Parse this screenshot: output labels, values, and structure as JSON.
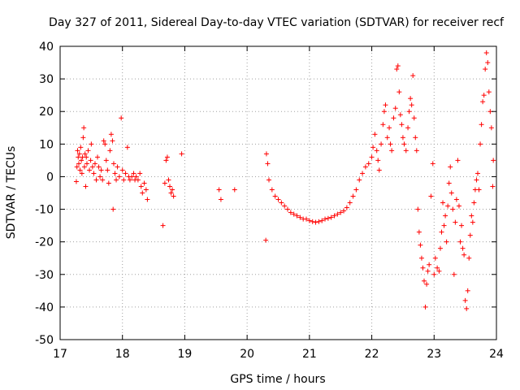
{
  "chart_data": {
    "type": "scatter",
    "title": "Day 327 of 2011, Sidereal Day-to-day VTEC variation (SDTVAR) for receiver recf",
    "xlabel": "GPS time / hours",
    "ylabel": "SDTVAR / TECUs",
    "xlim": [
      17,
      24
    ],
    "ylim": [
      -50,
      40
    ],
    "xticks": [
      17,
      18,
      19,
      20,
      21,
      22,
      23,
      24
    ],
    "yticks": [
      -50,
      -40,
      -30,
      -20,
      -10,
      0,
      10,
      20,
      30,
      40
    ],
    "grid": true,
    "marker": "plus",
    "color": "#ff0000",
    "series": [
      {
        "name": "SDTVAR",
        "points": [
          [
            17.26,
            -1.5
          ],
          [
            17.27,
            3
          ],
          [
            17.28,
            8
          ],
          [
            17.29,
            6
          ],
          [
            17.3,
            4
          ],
          [
            17.31,
            7
          ],
          [
            17.32,
            2
          ],
          [
            17.33,
            9
          ],
          [
            17.34,
            5
          ],
          [
            17.35,
            1
          ],
          [
            17.36,
            6
          ],
          [
            17.37,
            12
          ],
          [
            17.38,
            15
          ],
          [
            17.39,
            3
          ],
          [
            17.4,
            7
          ],
          [
            17.41,
            -3
          ],
          [
            17.42,
            6
          ],
          [
            17.43,
            4
          ],
          [
            17.45,
            8
          ],
          [
            17.47,
            2
          ],
          [
            17.49,
            5
          ],
          [
            17.5,
            10
          ],
          [
            17.52,
            3
          ],
          [
            17.54,
            1
          ],
          [
            17.56,
            4
          ],
          [
            17.58,
            -1
          ],
          [
            17.6,
            6
          ],
          [
            17.62,
            3
          ],
          [
            17.64,
            0
          ],
          [
            17.66,
            2
          ],
          [
            17.68,
            -1
          ],
          [
            17.7,
            11
          ],
          [
            17.72,
            10
          ],
          [
            17.74,
            5
          ],
          [
            17.76,
            2
          ],
          [
            17.78,
            -2
          ],
          [
            17.8,
            8
          ],
          [
            17.82,
            13
          ],
          [
            17.84,
            11
          ],
          [
            17.86,
            4
          ],
          [
            17.88,
            1
          ],
          [
            17.9,
            -1
          ],
          [
            17.92,
            3
          ],
          [
            17.95,
            0
          ],
          [
            17.98,
            18
          ],
          [
            18.0,
            2
          ],
          [
            18.02,
            -1
          ],
          [
            18.05,
            1
          ],
          [
            18.08,
            9
          ],
          [
            18.1,
            0
          ],
          [
            18.12,
            -1
          ],
          [
            18.15,
            0
          ],
          [
            18.18,
            1
          ],
          [
            18.2,
            -1
          ],
          [
            18.22,
            0
          ],
          [
            18.25,
            -1
          ],
          [
            18.28,
            1
          ],
          [
            18.3,
            -3
          ],
          [
            18.32,
            -5
          ],
          [
            18.35,
            -2
          ],
          [
            18.38,
            -4
          ],
          [
            18.4,
            -7
          ],
          [
            17.85,
            -10
          ],
          [
            18.65,
            -15
          ],
          [
            18.68,
            -2
          ],
          [
            18.7,
            5
          ],
          [
            18.72,
            6
          ],
          [
            18.74,
            -1
          ],
          [
            18.76,
            -3
          ],
          [
            18.78,
            -5
          ],
          [
            18.8,
            -4
          ],
          [
            18.82,
            -6
          ],
          [
            18.95,
            7
          ],
          [
            19.55,
            -4
          ],
          [
            19.58,
            -7
          ],
          [
            19.8,
            -4
          ],
          [
            20.3,
            -19.5
          ],
          [
            20.31,
            7
          ],
          [
            20.33,
            4
          ],
          [
            20.35,
            -1
          ],
          [
            20.4,
            -4
          ],
          [
            20.45,
            -6
          ],
          [
            20.5,
            -7
          ],
          [
            20.55,
            -8
          ],
          [
            20.6,
            -9
          ],
          [
            20.65,
            -10
          ],
          [
            20.7,
            -11
          ],
          [
            20.75,
            -11.5
          ],
          [
            20.8,
            -12
          ],
          [
            20.85,
            -12.5
          ],
          [
            20.9,
            -13
          ],
          [
            20.95,
            -13
          ],
          [
            21.0,
            -13.5
          ],
          [
            21.05,
            -13.8
          ],
          [
            21.1,
            -14
          ],
          [
            21.15,
            -13.8
          ],
          [
            21.2,
            -13.5
          ],
          [
            21.25,
            -13
          ],
          [
            21.3,
            -12.8
          ],
          [
            21.35,
            -12.5
          ],
          [
            21.4,
            -12
          ],
          [
            21.45,
            -11.5
          ],
          [
            21.5,
            -11
          ],
          [
            21.55,
            -10.5
          ],
          [
            21.6,
            -9.5
          ],
          [
            21.65,
            -8
          ],
          [
            21.7,
            -6
          ],
          [
            21.75,
            -4
          ],
          [
            21.8,
            -1
          ],
          [
            21.85,
            1
          ],
          [
            21.9,
            3
          ],
          [
            21.95,
            4
          ],
          [
            22.0,
            6
          ],
          [
            22.02,
            9
          ],
          [
            22.05,
            13
          ],
          [
            22.08,
            8
          ],
          [
            22.1,
            5
          ],
          [
            22.12,
            2
          ],
          [
            22.15,
            10
          ],
          [
            22.18,
            16
          ],
          [
            22.2,
            20
          ],
          [
            22.22,
            22
          ],
          [
            22.25,
            12
          ],
          [
            22.28,
            15
          ],
          [
            22.3,
            10
          ],
          [
            22.32,
            8
          ],
          [
            22.35,
            18
          ],
          [
            22.38,
            21
          ],
          [
            22.4,
            33
          ],
          [
            22.42,
            34
          ],
          [
            22.44,
            26
          ],
          [
            22.46,
            19
          ],
          [
            22.48,
            16
          ],
          [
            22.5,
            12
          ],
          [
            22.52,
            10
          ],
          [
            22.55,
            8
          ],
          [
            22.58,
            15
          ],
          [
            22.6,
            20
          ],
          [
            22.62,
            24
          ],
          [
            22.64,
            22
          ],
          [
            22.66,
            31
          ],
          [
            22.68,
            18
          ],
          [
            22.7,
            12
          ],
          [
            22.72,
            8
          ],
          [
            22.74,
            -10
          ],
          [
            22.76,
            -17
          ],
          [
            22.78,
            -21
          ],
          [
            22.8,
            -25
          ],
          [
            22.82,
            -28
          ],
          [
            22.84,
            -32
          ],
          [
            22.86,
            -40
          ],
          [
            22.88,
            -33
          ],
          [
            22.9,
            -29
          ],
          [
            22.92,
            -27
          ],
          [
            22.95,
            -6
          ],
          [
            22.98,
            4
          ],
          [
            23.0,
            -30
          ],
          [
            23.02,
            -25
          ],
          [
            23.05,
            -28
          ],
          [
            23.08,
            -29
          ],
          [
            23.1,
            -22
          ],
          [
            23.12,
            -17
          ],
          [
            23.14,
            -8
          ],
          [
            23.16,
            -15
          ],
          [
            23.18,
            -12
          ],
          [
            23.2,
            -20
          ],
          [
            23.22,
            -9
          ],
          [
            23.24,
            -2
          ],
          [
            23.26,
            3
          ],
          [
            23.28,
            -5
          ],
          [
            23.3,
            -10
          ],
          [
            23.32,
            -30
          ],
          [
            23.34,
            -14
          ],
          [
            23.36,
            -7
          ],
          [
            23.38,
            5
          ],
          [
            23.4,
            -9
          ],
          [
            23.42,
            -20
          ],
          [
            23.44,
            -15
          ],
          [
            23.46,
            -22
          ],
          [
            23.48,
            -24
          ],
          [
            23.5,
            -38
          ],
          [
            23.52,
            -40.5
          ],
          [
            23.54,
            -35
          ],
          [
            23.56,
            -25
          ],
          [
            23.58,
            -18
          ],
          [
            23.6,
            -12
          ],
          [
            23.62,
            -14
          ],
          [
            23.64,
            -8
          ],
          [
            23.66,
            -4
          ],
          [
            23.68,
            -1
          ],
          [
            23.7,
            1
          ],
          [
            23.72,
            -4
          ],
          [
            23.74,
            10
          ],
          [
            23.76,
            16
          ],
          [
            23.78,
            23
          ],
          [
            23.8,
            25
          ],
          [
            23.82,
            33
          ],
          [
            23.84,
            38
          ],
          [
            23.86,
            35
          ],
          [
            23.88,
            26
          ],
          [
            23.9,
            20
          ],
          [
            23.92,
            15
          ],
          [
            23.94,
            -3
          ],
          [
            23.95,
            5
          ]
        ]
      }
    ]
  }
}
